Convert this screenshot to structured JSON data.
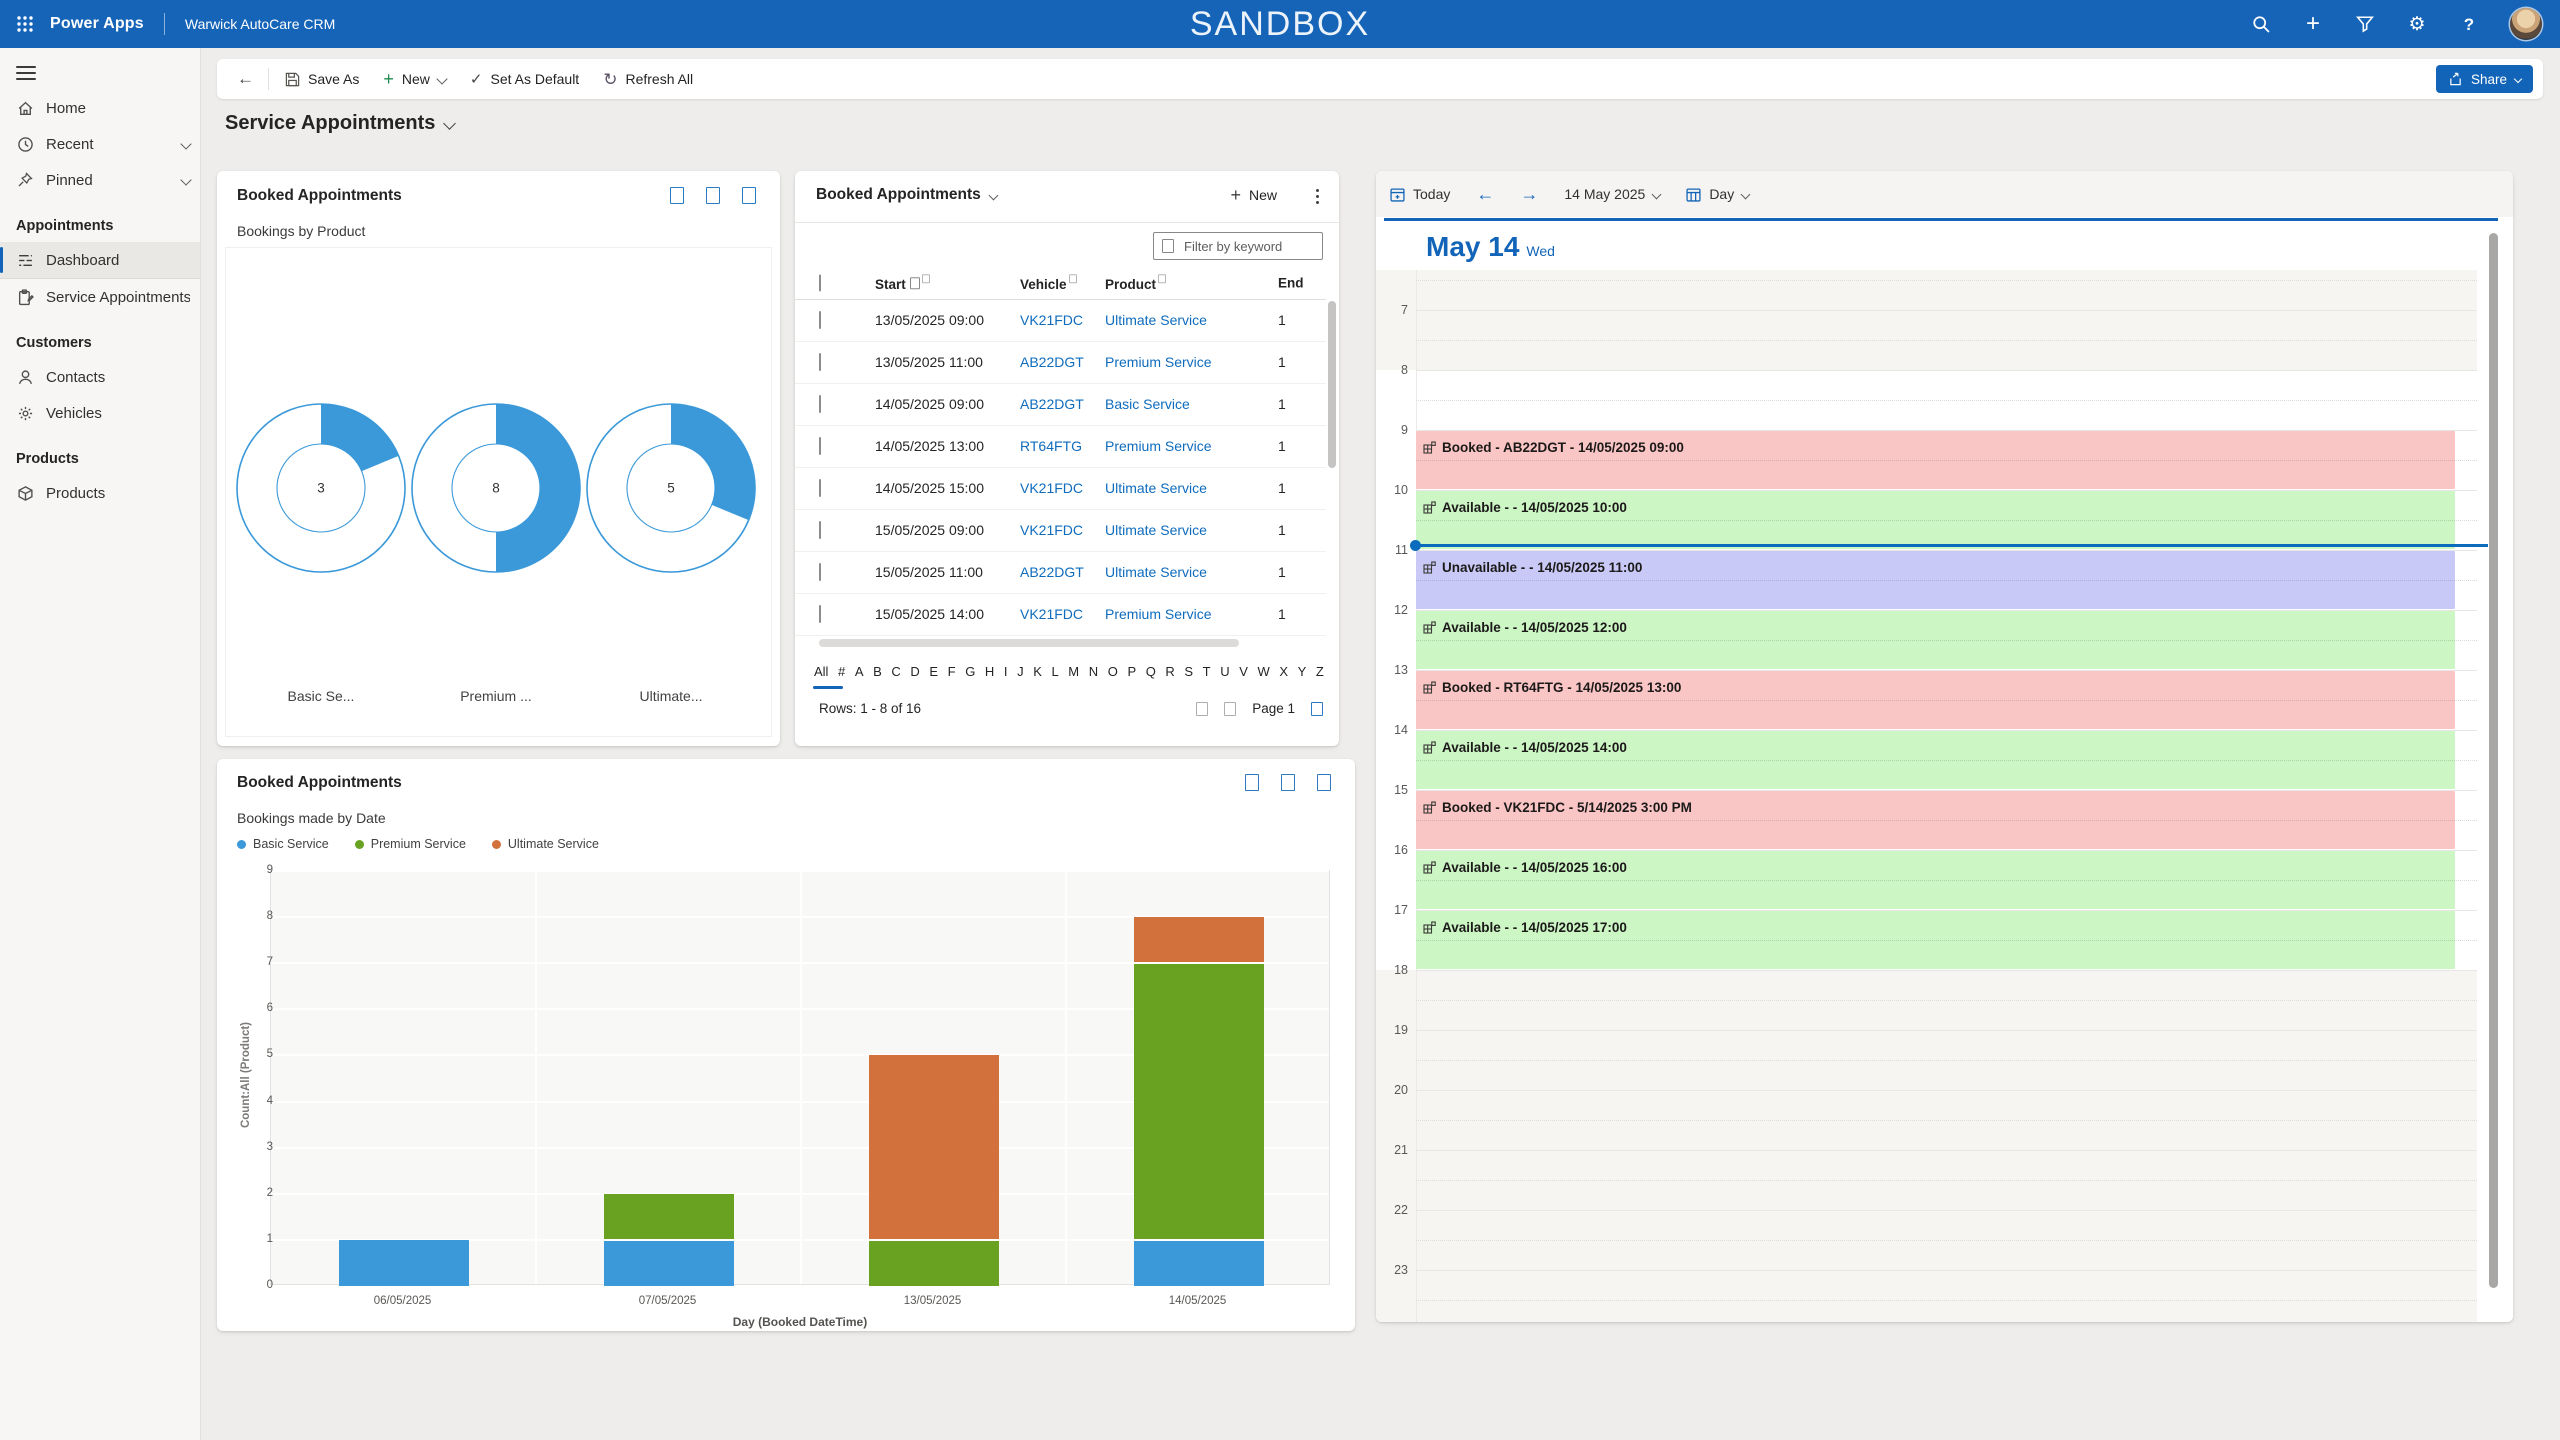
{
  "app_bar": {
    "product_name": "Power Apps",
    "org_name": "Warwick AutoCare CRM",
    "environment_banner": "SANDBOX",
    "right_icons": [
      "search-icon",
      "add-icon",
      "filter-icon",
      "settings-icon",
      "help-icon"
    ],
    "settings_glyph": "⚙",
    "help_glyph": "?",
    "add_glyph": "+"
  },
  "command_bar": {
    "back_glyph": "←",
    "save_as_label": "Save As",
    "new_label": "New",
    "set_default_label": "Set As Default",
    "set_default_glyph": "✓",
    "refresh_label": "Refresh All",
    "refresh_glyph": "↻",
    "new_plus_glyph": "+",
    "share_label": "Share"
  },
  "page": {
    "title": "Service Appointments"
  },
  "sidebar": {
    "sections": [
      {
        "heading": null,
        "items": [
          {
            "icon": "home-icon",
            "label": "Home"
          },
          {
            "icon": "clock-icon",
            "label": "Recent",
            "chevron": true
          },
          {
            "icon": "pin-icon",
            "label": "Pinned",
            "chevron": true
          }
        ]
      },
      {
        "heading": "Appointments",
        "items": [
          {
            "icon": "dashboard-icon",
            "label": "Dashboard",
            "selected": true
          },
          {
            "icon": "clipboard-icon",
            "label": "Service Appointments"
          }
        ]
      },
      {
        "heading": "Customers",
        "items": [
          {
            "icon": "person-icon",
            "label": "Contacts"
          },
          {
            "icon": "gear-icon",
            "label": "Vehicles"
          }
        ]
      },
      {
        "heading": "Products",
        "items": [
          {
            "icon": "cube-icon",
            "label": "Products"
          }
        ]
      }
    ]
  },
  "donut_panel": {
    "title": "Booked Appointments",
    "labels_truncated": [
      "Basic Se...",
      "Premium ...",
      "Ultimate..."
    ]
  },
  "grid_panel": {
    "title": "Booked Appointments",
    "new_label": "New",
    "filter_placeholder": "Filter by keyword",
    "columns": [
      "Start",
      "Vehicle",
      "Product",
      "End"
    ],
    "rows": [
      {
        "start": "13/05/2025 09:00",
        "vehicle": "VK21FDC",
        "product": "Ultimate Service",
        "end": "1"
      },
      {
        "start": "13/05/2025 11:00",
        "vehicle": "AB22DGT",
        "product": "Premium Service",
        "end": "1"
      },
      {
        "start": "14/05/2025 09:00",
        "vehicle": "AB22DGT",
        "product": "Basic Service",
        "end": "1"
      },
      {
        "start": "14/05/2025 13:00",
        "vehicle": "RT64FTG",
        "product": "Premium Service",
        "end": "1"
      },
      {
        "start": "14/05/2025 15:00",
        "vehicle": "VK21FDC",
        "product": "Ultimate Service",
        "end": "1"
      },
      {
        "start": "15/05/2025 09:00",
        "vehicle": "VK21FDC",
        "product": "Ultimate Service",
        "end": "1"
      },
      {
        "start": "15/05/2025 11:00",
        "vehicle": "AB22DGT",
        "product": "Ultimate Service",
        "end": "1"
      },
      {
        "start": "15/05/2025 14:00",
        "vehicle": "VK21FDC",
        "product": "Premium Service",
        "end": "1"
      }
    ],
    "alphabet": [
      "All",
      "#",
      "A",
      "B",
      "C",
      "D",
      "E",
      "F",
      "G",
      "H",
      "I",
      "J",
      "K",
      "L",
      "M",
      "N",
      "O",
      "P",
      "Q",
      "R",
      "S",
      "T",
      "U",
      "V",
      "W",
      "X",
      "Y",
      "Z"
    ],
    "active_letter": "All",
    "rows_info": "Rows: 1 - 8 of 16",
    "page_label": "Page 1"
  },
  "calendar_panel": {
    "today_label": "Today",
    "prev_glyph": "←",
    "next_glyph": "→",
    "date_label": "14 May 2025",
    "view_label": "Day",
    "day_heading": "May 14",
    "day_of_week": "Wed",
    "hours": {
      "first": 7,
      "last": 23,
      "work_start": 8,
      "work_end": 18
    },
    "current_time_hour": 10.9,
    "colors": {
      "booked": "#fac5c5",
      "available": "#ccf6c4",
      "unavailable": "#c9c9f7"
    },
    "events": [
      {
        "hour": 9,
        "status": "booked",
        "label": "Booked - AB22DGT - 14/05/2025 09:00"
      },
      {
        "hour": 10,
        "status": "available",
        "label": "Available - - 14/05/2025 10:00"
      },
      {
        "hour": 11,
        "status": "unavailable",
        "label": "Unavailable - - 14/05/2025 11:00"
      },
      {
        "hour": 12,
        "status": "available",
        "label": "Available - - 14/05/2025 12:00"
      },
      {
        "hour": 13,
        "status": "booked",
        "label": "Booked - RT64FTG - 14/05/2025 13:00"
      },
      {
        "hour": 14,
        "status": "available",
        "label": "Available - - 14/05/2025 14:00"
      },
      {
        "hour": 15,
        "status": "booked",
        "label": "Booked - VK21FDC - 5/14/2025 3:00 PM"
      },
      {
        "hour": 16,
        "status": "available",
        "label": "Available - - 14/05/2025 16:00"
      },
      {
        "hour": 17,
        "status": "available",
        "label": "Available - - 14/05/2025 17:00"
      }
    ]
  },
  "chart_panel": {
    "title": "Booked Appointments"
  },
  "chart_data": [
    {
      "type": "pie",
      "variant": "donut-multiples",
      "title": "Bookings by Product",
      "categories": [
        "Basic Service",
        "Premium Service",
        "Ultimate Service"
      ],
      "values": [
        3,
        8,
        5
      ],
      "total": 16,
      "color": "#3b99d9",
      "legend_position": "bottom"
    },
    {
      "type": "bar",
      "stacked": true,
      "title": "Bookings made by Date",
      "categories": [
        "06/05/2025",
        "07/05/2025",
        "13/05/2025",
        "14/05/2025"
      ],
      "series": [
        {
          "name": "Basic Service",
          "color": "#3b99d9",
          "values": [
            1,
            1,
            0,
            1
          ]
        },
        {
          "name": "Premium Service",
          "color": "#69a120",
          "values": [
            0,
            1,
            1,
            6
          ]
        },
        {
          "name": "Ultimate Service",
          "color": "#d2713c",
          "values": [
            0,
            0,
            4,
            1
          ]
        }
      ],
      "xlabel": "Day (Booked DateTime)",
      "ylabel": "Count:All (Product)",
      "ylim": [
        0,
        9
      ],
      "grid": true,
      "legend_position": "top"
    }
  ],
  "colors": {
    "header_blue": "#1564b8",
    "accent_blue": "#1164b7",
    "link_blue": "#0f6cbd",
    "nonwork_band": "#f6f5f2"
  }
}
